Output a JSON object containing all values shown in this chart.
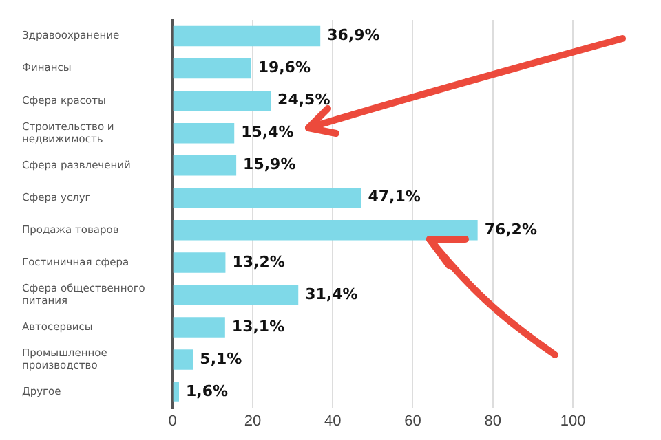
{
  "chart_data": {
    "type": "bar",
    "orientation": "horizontal",
    "categories": [
      "Здравоохранение",
      "Финансы",
      "Сфера красоты",
      "Строительство и недвижимость",
      "Сфера развлечений",
      "Сфера услуг",
      "Продажа товаров",
      "Гостиничная сфера",
      "Сфера общественного питания",
      "Автосервисы",
      "Промышленное производство",
      "Другое"
    ],
    "values": [
      36.9,
      19.6,
      24.5,
      15.4,
      15.9,
      47.1,
      76.2,
      13.2,
      31.4,
      13.1,
      5.1,
      1.6
    ],
    "value_labels": [
      "36,9%",
      "19,6%",
      "24,5%",
      "15,4%",
      "15,9%",
      "47,1%",
      "76,2%",
      "13,2%",
      "31,4%",
      "13,1%",
      "5,1%",
      "1,6%"
    ],
    "color": "#7fd9e8",
    "xlim": [
      0,
      100
    ],
    "xticks": [
      0,
      20,
      40,
      60,
      80,
      100
    ],
    "grid": "x",
    "legend": false
  }
}
